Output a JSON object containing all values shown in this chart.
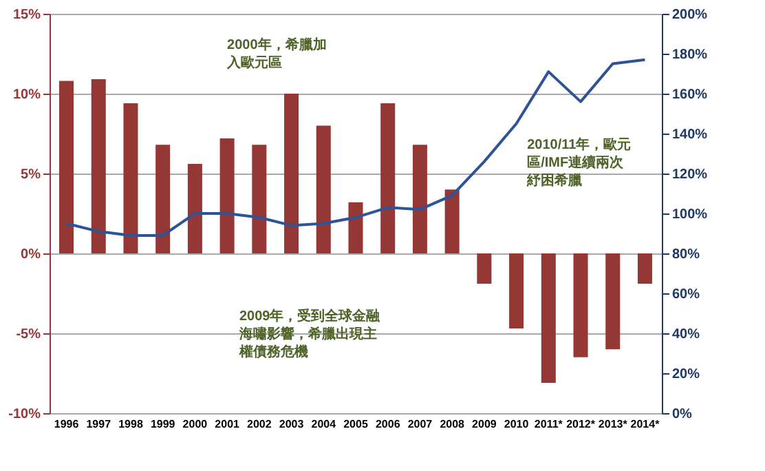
{
  "chart_data": {
    "type": "bar",
    "categories": [
      "1996",
      "1997",
      "1998",
      "1999",
      "2000",
      "2001",
      "2002",
      "2003",
      "2004",
      "2005",
      "2006",
      "2007",
      "2008",
      "2009",
      "2010",
      "2011*",
      "2012*",
      "2013*",
      "2014*"
    ],
    "series": [
      {
        "color": "#953735",
        "values": [
          10.8,
          10.9,
          9.4,
          6.8,
          5.6,
          7.2,
          6.8,
          10.0,
          8.0,
          3.2,
          9.4,
          6.8,
          4.0,
          -1.9,
          -4.7,
          -8.1,
          -6.5,
          -6.0,
          -1.9
        ]
      },
      {
        "type": "line",
        "axis": "y2",
        "color": "#2f5496",
        "values": [
          95,
          91,
          89,
          89,
          100,
          100,
          98,
          94,
          95,
          98,
          103,
          102,
          109,
          126,
          145,
          171,
          156,
          175,
          177
        ]
      }
    ],
    "ylim": [
      -10,
      15
    ],
    "yticks": [
      {
        "value": -10,
        "label": "-10%"
      },
      {
        "value": -5,
        "label": "-5%"
      },
      {
        "value": 0,
        "label": "0%"
      },
      {
        "value": 5,
        "label": "5%"
      },
      {
        "value": 10,
        "label": "10%"
      },
      {
        "value": 15,
        "label": "15%"
      }
    ],
    "y2lim": [
      0,
      200
    ],
    "y2ticks": [
      {
        "value": 0,
        "label": "0%"
      },
      {
        "value": 20,
        "label": "20%"
      },
      {
        "value": 40,
        "label": "40%"
      },
      {
        "value": 60,
        "label": "60%"
      },
      {
        "value": 80,
        "label": "80%"
      },
      {
        "value": 100,
        "label": "100%"
      },
      {
        "value": 120,
        "label": "120%"
      },
      {
        "value": 140,
        "label": "140%"
      },
      {
        "value": 160,
        "label": "160%"
      },
      {
        "value": 180,
        "label": "180%"
      },
      {
        "value": 200,
        "label": "200%"
      }
    ],
    "grid": "y",
    "marker": "none",
    "annotations": [
      "2000年，希臘加入歐元區",
      "2009年，受到全球金融海嘯影響，希臘出現主權債務危機",
      "2010/11年，歐元區/IMF連續兩次紓困希臘"
    ]
  }
}
